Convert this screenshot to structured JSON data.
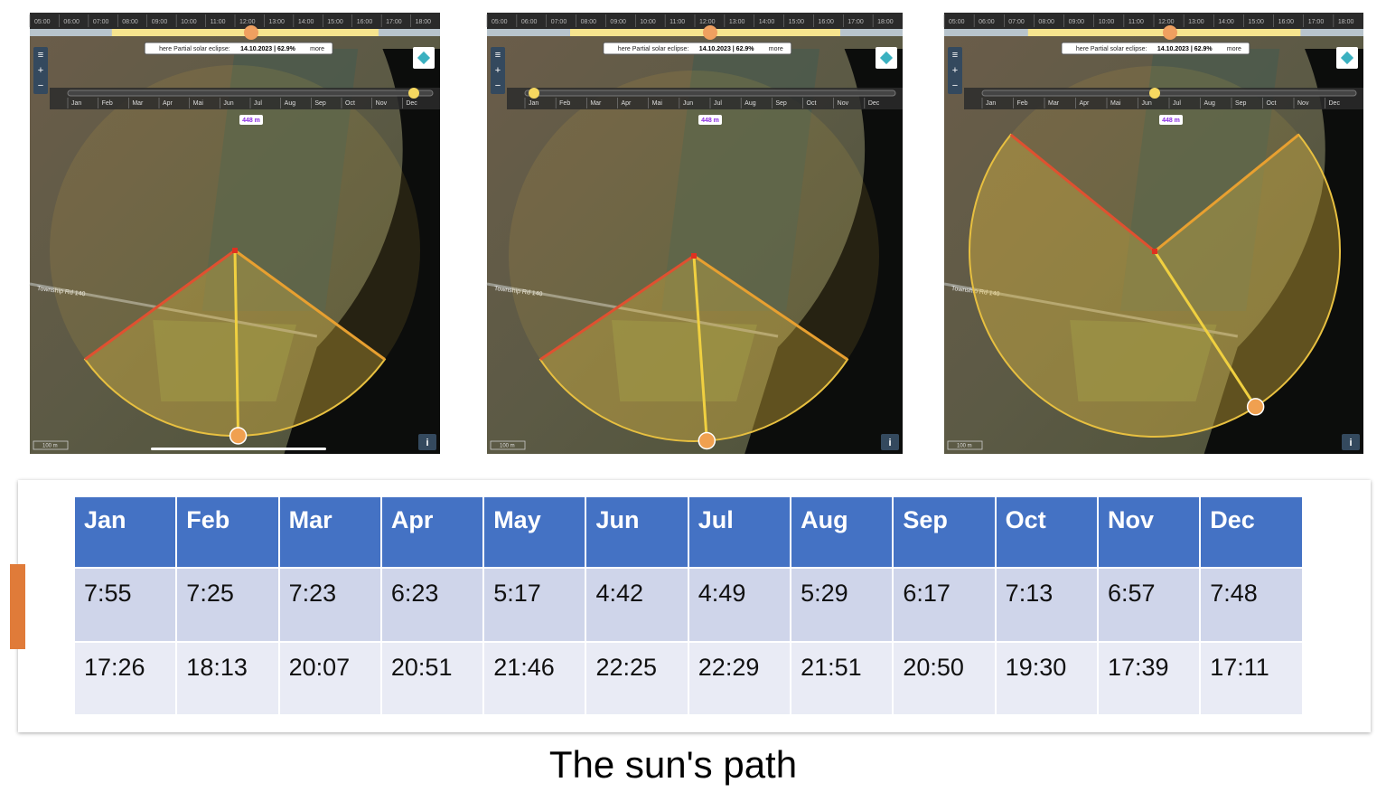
{
  "map": {
    "hours": [
      "05:00",
      "06:00",
      "07:00",
      "08:00",
      "09:00",
      "10:00",
      "11:00",
      "12:00",
      "13:00",
      "14:00",
      "15:00",
      "16:00",
      "17:00",
      "18:00"
    ],
    "eclipse_prefix": "here Partial solar eclipse:",
    "eclipse_date": "14.10.2023 | 62.9%",
    "eclipse_more": "more",
    "months": [
      "Jan",
      "Feb",
      "Mar",
      "Apr",
      "Mai",
      "Jun",
      "Jul",
      "Aug",
      "Sep",
      "Oct",
      "Nov",
      "Dec"
    ],
    "distance": "448 m",
    "scale": "100 m",
    "road": "Township Rd 140",
    "info": "i"
  },
  "table": {
    "header": [
      "Jan",
      "Feb",
      "Mar",
      "Apr",
      "May",
      "Jun",
      "Jul",
      "Aug",
      "Sep",
      "Oct",
      "Nov",
      "Dec"
    ],
    "rows": [
      [
        "7:55",
        "7:25",
        "7:23",
        "6:23",
        "5:17",
        "4:42",
        "4:49",
        "5:29",
        "6:17",
        "7:13",
        "6:57",
        "7:48"
      ],
      [
        "17:26",
        "18:13",
        "20:07",
        "20:51",
        "21:46",
        "22:25",
        "22:29",
        "21:51",
        "20:50",
        "19:30",
        "17:39",
        "17:11"
      ]
    ]
  },
  "caption": "The sun's path"
}
